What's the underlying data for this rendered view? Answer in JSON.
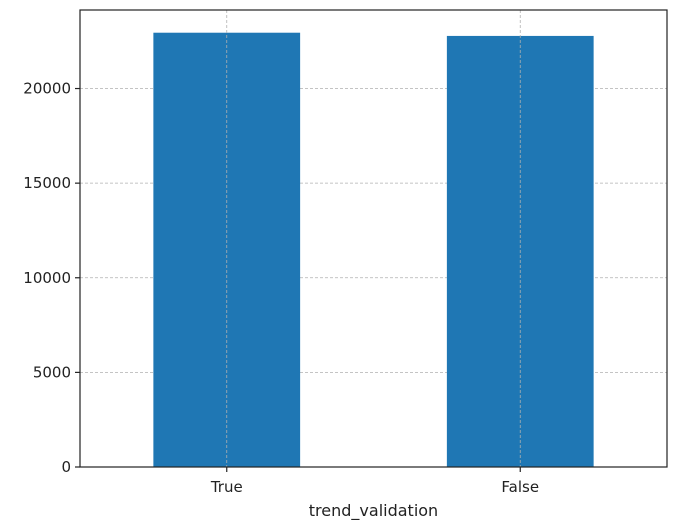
{
  "chart_data": {
    "type": "bar",
    "title": "",
    "xlabel": "trend_validation",
    "ylabel": "",
    "categories": [
      "True",
      "False"
    ],
    "values": [
      22950,
      22780
    ],
    "ylim": [
      0,
      24150
    ],
    "yticks": [
      0,
      5000,
      10000,
      15000,
      20000
    ],
    "ytick_labels": [
      "0",
      "5000",
      "10000",
      "15000",
      "20000"
    ],
    "grid": true,
    "legend": "none",
    "bar_color": "#1f77b4",
    "grid_color": "#b0b0b0"
  }
}
